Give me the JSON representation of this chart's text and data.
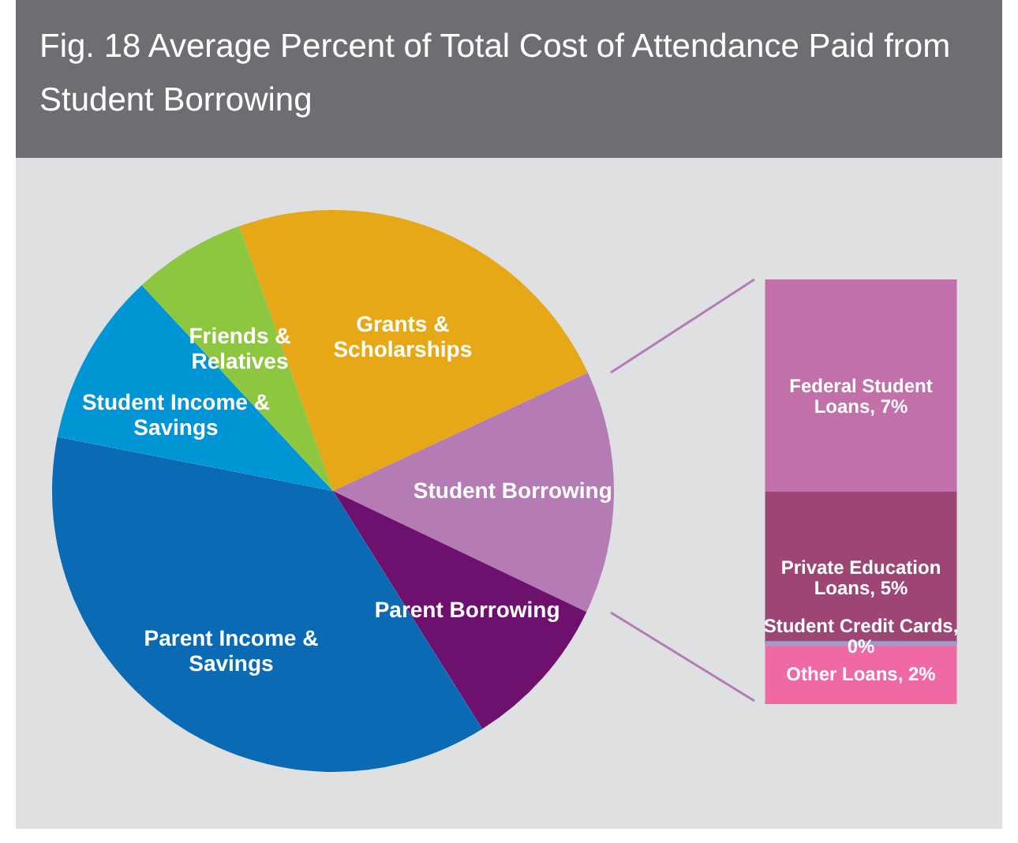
{
  "chart_data": [
    {
      "type": "pie",
      "title": "Fig. 18 Average Percent of Total Cost of Attendance Paid from Student Borrowing",
      "categories": [
        "Grants & Scholarships",
        "Student Borrowing",
        "Parent Borrowing",
        "Parent Income & Savings",
        "Student Income & Savings",
        "Friends & Relatives"
      ],
      "values": [
        23.5,
        14,
        9,
        37,
        10,
        6.5
      ],
      "colors": [
        "#e6a817",
        "#b47bb4",
        "#6e116e",
        "#0a6ab4",
        "#0095d4",
        "#8dc63f"
      ]
    },
    {
      "type": "bar",
      "stacked": true,
      "categories": [
        null
      ],
      "series": [
        {
          "color": "#ef6aa5",
          "values": [
            2
          ],
          "value_labels": [
            "Other Loans, 2%"
          ]
        },
        {
          "color": "#9e9ec8",
          "values": [
            0
          ],
          "value_labels": [
            "Student Credit Cards, 0%"
          ]
        },
        {
          "color": "#9d4676",
          "values": [
            5
          ],
          "value_labels": [
            "Private Education Loans, 5%"
          ]
        },
        {
          "color": "#c270aa",
          "values": [
            7
          ],
          "value_labels": [
            "Federal Student Loans, 7%"
          ]
        }
      ]
    }
  ]
}
